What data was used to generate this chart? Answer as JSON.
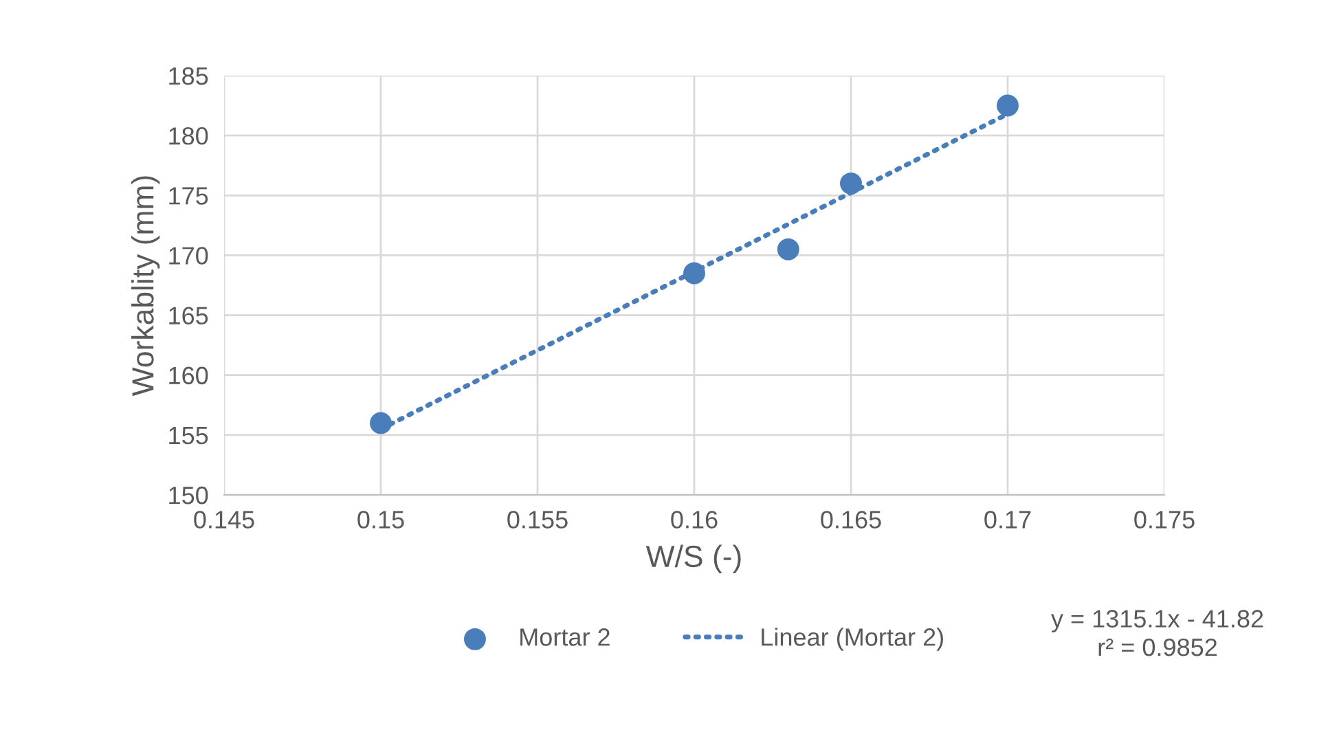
{
  "chart_data": {
    "type": "scatter",
    "xlabel": "W/S (-)",
    "ylabel": "Workablity (mm)",
    "series": [
      {
        "name": "Mortar 2",
        "color": "#4a7ebb",
        "marker": "circle",
        "x": [
          0.15,
          0.16,
          0.163,
          0.165,
          0.17
        ],
        "values": [
          156,
          168.5,
          170.5,
          176,
          182.5
        ]
      },
      {
        "name": "Linear (Mortar 2)",
        "type": "line",
        "color": "#4a7ebb",
        "marker": "none",
        "line_style": "dotted",
        "x": [
          0.15,
          0.17
        ],
        "values": [
          155.5,
          181.8
        ]
      }
    ],
    "xlim": [
      0.145,
      0.175
    ],
    "xticks": [
      0.145,
      0.15,
      0.155,
      0.16,
      0.165,
      0.17,
      0.175
    ],
    "ylim": [
      150,
      185
    ],
    "yticks": [
      150,
      155,
      160,
      165,
      170,
      175,
      180,
      185
    ],
    "grid": true,
    "legend": "bottom",
    "annotations": [
      "y = 1315.1x - 41.82\nr² = 0.9852"
    ]
  }
}
